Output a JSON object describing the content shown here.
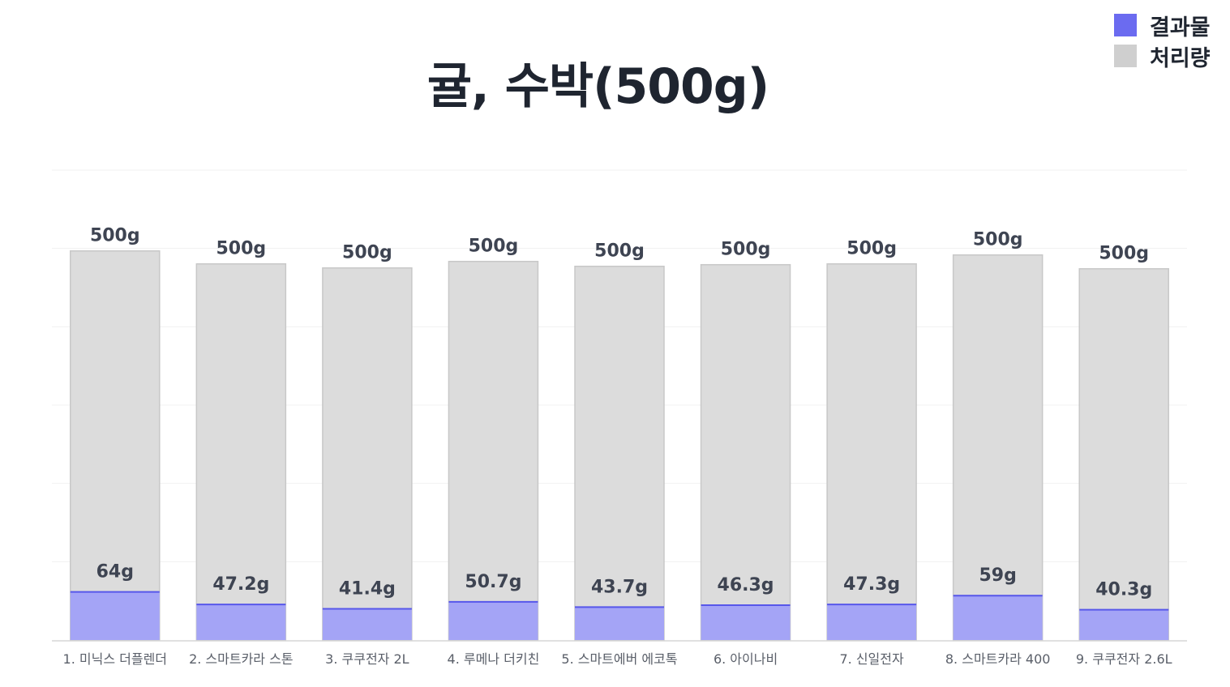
{
  "chart_data": {
    "type": "bar",
    "stacked": false,
    "overlapping_bars": true,
    "title": "귤, 수박(500g)",
    "xlabel": "",
    "ylabel": "",
    "ylim": [
      0,
      560
    ],
    "grid": true,
    "legend_position": "top-right",
    "categories": [
      "1. 미닉스 더플렌더",
      "2. 스마트카라 스톤",
      "3. 쿠쿠전자 2L",
      "4. 루메나 더키친",
      "5. 스마트에버 에코톡",
      "6. 아이나비",
      "7. 신일전자",
      "8. 스마트카라 400",
      "9. 쿠쿠전자 2.6L"
    ],
    "series": [
      {
        "name": "결과물",
        "color": "#a4a4f6",
        "edge_color": "#5757ea",
        "values": [
          64,
          47.2,
          41.4,
          50.7,
          43.7,
          46.3,
          47.3,
          59,
          40.3
        ],
        "labels": [
          "64g",
          "47.2g",
          "41.4g",
          "50.7g",
          "43.7g",
          "46.3g",
          "47.3g",
          "59g",
          "40.3g"
        ]
      },
      {
        "name": "처리량",
        "color": "#dcdcdc",
        "edge_color": "#c8c8c8",
        "values": [
          500,
          500,
          500,
          500,
          500,
          500,
          500,
          500,
          500
        ],
        "labels": [
          "500g",
          "500g",
          "500g",
          "500g",
          "500g",
          "500g",
          "500g",
          "500g",
          "500g"
        ]
      }
    ],
    "legend": [
      {
        "label": "결과물",
        "color": "#6b6bf0"
      },
      {
        "label": "처리량",
        "color": "#cfcfcf"
      }
    ]
  }
}
